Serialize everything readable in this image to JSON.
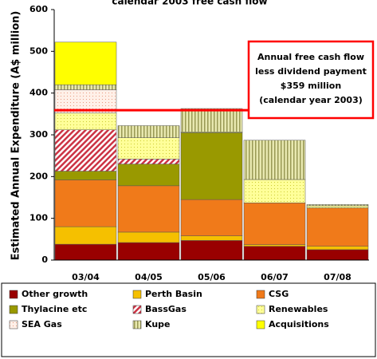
{
  "chart_data": {
    "type": "stacked_bar",
    "title": "calendar 2003 free cash flow",
    "y_label": "Estimated Annual Expenditure (A$ million)",
    "categories": [
      "03/04",
      "04/05",
      "05/06",
      "06/07",
      "07/08"
    ],
    "series": [
      {
        "name": "Other growth",
        "color": "#990000",
        "values": [
          38,
          42,
          47,
          33,
          25
        ]
      },
      {
        "name": "Perth Basin",
        "color": "#f5c000",
        "values": [
          42,
          25,
          11,
          4,
          8
        ]
      },
      {
        "name": "CSG",
        "color": "#f07a1a",
        "values": [
          112,
          111,
          87,
          100,
          92
        ]
      },
      {
        "name": "Thylacine etc",
        "color": "#999900",
        "values": [
          21,
          52,
          160,
          0,
          0
        ]
      },
      {
        "name": "BassGas",
        "color": "#cc3344",
        "pattern": "hatch",
        "values": [
          99,
          12,
          0,
          0,
          0
        ]
      },
      {
        "name": "Renewables",
        "color": "#ffff99",
        "pattern": "dots",
        "values": [
          40,
          51,
          2,
          56,
          5
        ]
      },
      {
        "name": "SEA Gas",
        "color": "#ffd8c8",
        "pattern": "grid",
        "values": [
          56,
          0,
          0,
          0,
          0
        ]
      },
      {
        "name": "Kupe",
        "color": "#cccc88",
        "pattern": "vstripe",
        "values": [
          12,
          29,
          56,
          94,
          3
        ]
      },
      {
        "name": "Acquisitions",
        "color": "#ffff00",
        "values": [
          102,
          0,
          0,
          0,
          0
        ]
      }
    ],
    "ylim": [
      0,
      600
    ],
    "yticks": [
      0,
      100,
      200,
      300,
      400,
      500,
      600
    ],
    "reference_line": {
      "value": 359,
      "color": "#ff0000"
    },
    "annotation": [
      "Annual free cash flow",
      "less dividend payment",
      "$359 million",
      "(calendar year 2003)"
    ]
  }
}
